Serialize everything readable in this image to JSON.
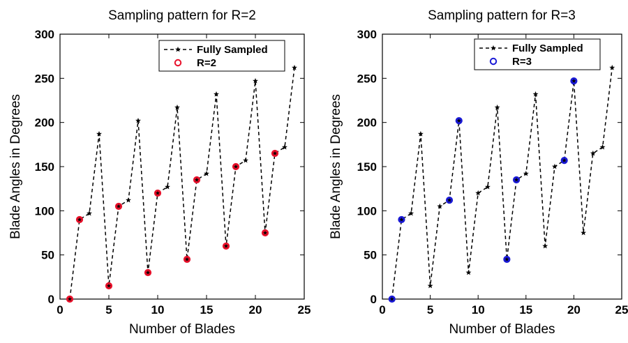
{
  "chart_data": [
    {
      "type": "line",
      "title": "Sampling pattern for R=2",
      "xlabel": "Number of Blades",
      "ylabel": "Blade Angles in Degrees",
      "xlim": [
        0,
        25
      ],
      "ylim": [
        0,
        300
      ],
      "xticks": [
        0,
        5,
        10,
        15,
        20,
        25
      ],
      "yticks": [
        0,
        50,
        100,
        150,
        200,
        250,
        300
      ],
      "legend_position": "top-right",
      "series": [
        {
          "name": "Fully Sampled",
          "style": "dashed-line-star-markers",
          "color": "#000000",
          "x": [
            1,
            2,
            3,
            4,
            5,
            6,
            7,
            8,
            9,
            10,
            11,
            12,
            13,
            14,
            15,
            16,
            17,
            18,
            19,
            20,
            21,
            22,
            23,
            24
          ],
          "y": [
            0,
            90,
            97,
            187,
            15,
            105,
            112,
            202,
            30,
            120,
            127,
            217,
            45,
            135,
            142,
            232,
            60,
            150,
            157,
            247,
            75,
            165,
            172,
            262
          ]
        },
        {
          "name": "R=2",
          "style": "circle-markers",
          "color": "#e8102a",
          "x": [
            1,
            2,
            5,
            6,
            9,
            10,
            13,
            14,
            17,
            18,
            21,
            22
          ],
          "y": [
            0,
            90,
            15,
            105,
            30,
            120,
            45,
            135,
            60,
            150,
            75,
            165
          ]
        }
      ]
    },
    {
      "type": "line",
      "title": "Sampling pattern for R=3",
      "xlabel": "Number of Blades",
      "ylabel": "Blade Angles in Degrees",
      "xlim": [
        0,
        25
      ],
      "ylim": [
        0,
        300
      ],
      "xticks": [
        0,
        5,
        10,
        15,
        20,
        25
      ],
      "yticks": [
        0,
        50,
        100,
        150,
        200,
        250,
        300
      ],
      "legend_position": "top-right",
      "series": [
        {
          "name": "Fully Sampled",
          "style": "dashed-line-star-markers",
          "color": "#000000",
          "x": [
            1,
            2,
            3,
            4,
            5,
            6,
            7,
            8,
            9,
            10,
            11,
            12,
            13,
            14,
            15,
            16,
            17,
            18,
            19,
            20,
            21,
            22,
            23,
            24
          ],
          "y": [
            0,
            90,
            97,
            187,
            15,
            105,
            112,
            202,
            30,
            120,
            127,
            217,
            45,
            135,
            142,
            232,
            60,
            150,
            157,
            247,
            75,
            165,
            172,
            262
          ]
        },
        {
          "name": "R=3",
          "style": "circle-markers",
          "color": "#1a1ad6",
          "x": [
            1,
            2,
            7,
            8,
            13,
            14,
            19,
            20
          ],
          "y": [
            0,
            90,
            112,
            202,
            45,
            135,
            157,
            247
          ]
        }
      ]
    }
  ]
}
